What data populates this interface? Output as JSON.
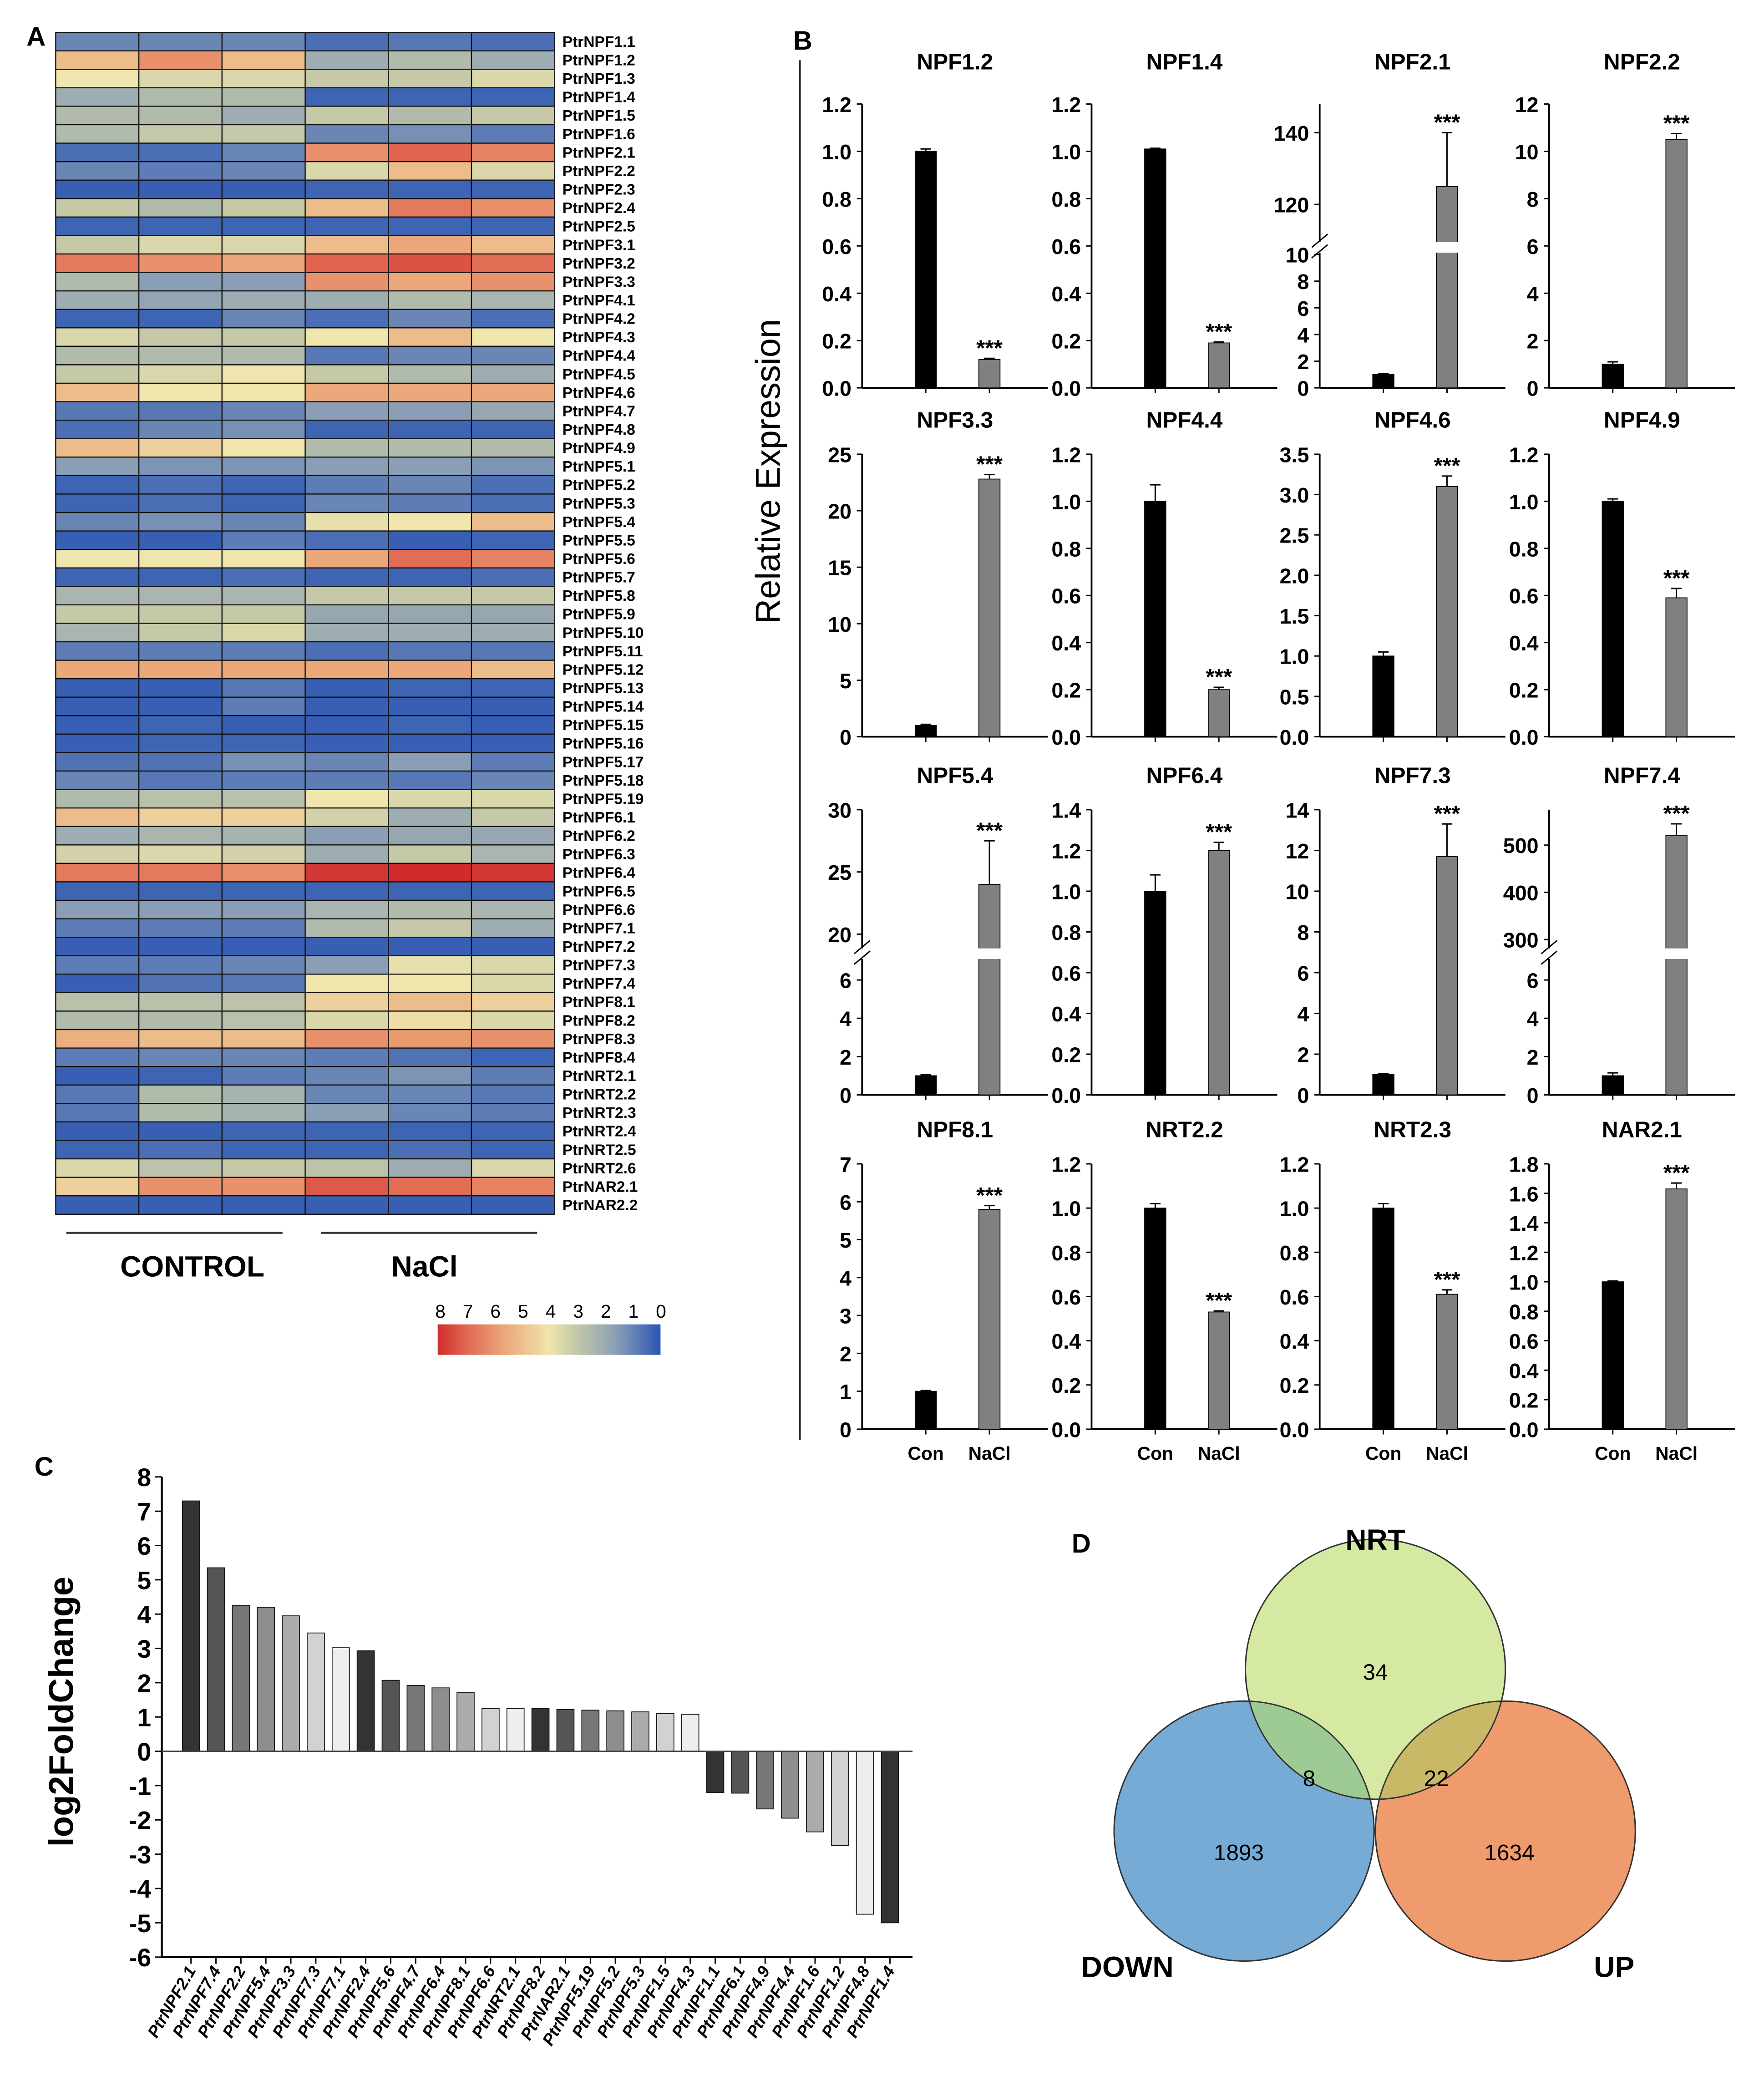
{
  "panel_labels": {
    "a": "A",
    "b": "B",
    "c": "C",
    "d": "D"
  },
  "chart_data": [
    {
      "type": "heatmap",
      "panel": "A",
      "columns_groups": [
        "CONTROL",
        "NaCl"
      ],
      "color_scale": {
        "min": 0,
        "max": 8,
        "tick_labels": [
          "8",
          "7",
          "6",
          "5",
          "4",
          "3",
          "2",
          "1",
          "0"
        ],
        "low_color": "#2b55b4",
        "high_color": "#d02c2c"
      },
      "rows": [
        "PtrNPF1.1",
        "PtrNPF1.2",
        "PtrNPF1.3",
        "PtrNPF1.4",
        "PtrNPF1.5",
        "PtrNPF1.6",
        "PtrNPF2.1",
        "PtrNPF2.2",
        "PtrNPF2.3",
        "PtrNPF2.4",
        "PtrNPF2.5",
        "PtrNPF3.1",
        "PtrNPF3.2",
        "PtrNPF3.3",
        "PtrNPF4.1",
        "PtrNPF4.2",
        "PtrNPF4.3",
        "PtrNPF4.4",
        "PtrNPF4.5",
        "PtrNPF4.6",
        "PtrNPF4.7",
        "PtrNPF4.8",
        "PtrNPF4.9",
        "PtrNPF5.1",
        "PtrNPF5.2",
        "PtrNPF5.3",
        "PtrNPF5.4",
        "PtrNPF5.5",
        "PtrNPF5.6",
        "PtrNPF5.7",
        "PtrNPF5.8",
        "PtrNPF5.9",
        "PtrNPF5.10",
        "PtrNPF5.11",
        "PtrNPF5.12",
        "PtrNPF5.13",
        "PtrNPF5.14",
        "PtrNPF5.15",
        "PtrNPF5.16",
        "PtrNPF5.17",
        "PtrNPF5.18",
        "PtrNPF5.19",
        "PtrNPF6.1",
        "PtrNPF6.2",
        "PtrNPF6.3",
        "PtrNPF6.4",
        "PtrNPF6.5",
        "PtrNPF6.6",
        "PtrNPF7.1",
        "PtrNPF7.2",
        "PtrNPF7.3",
        "PtrNPF7.4",
        "PtrNPF8.1",
        "PtrNPF8.2",
        "PtrNPF8.3",
        "PtrNPF8.4",
        "PtrNRT2.1",
        "PtrNRT2.2",
        "PtrNRT2.3",
        "PtrNRT2.4",
        "PtrNRT2.5",
        "PtrNRT2.6",
        "PtrNAR2.1",
        "PtrNAR2.2"
      ],
      "values": [
        [
          1,
          1,
          1,
          0.5,
          0.7,
          0.5
        ],
        [
          5,
          6,
          5,
          2,
          2.5,
          2
        ],
        [
          4,
          3.5,
          3.5,
          3,
          3,
          3.5
        ],
        [
          2,
          2.5,
          2.5,
          0.3,
          0.3,
          0.3
        ],
        [
          2.5,
          2.5,
          2,
          3,
          2.5,
          3
        ],
        [
          2.5,
          3,
          3,
          1,
          1.2,
          0.8
        ],
        [
          0.5,
          0.5,
          1,
          6,
          7,
          6.3
        ],
        [
          1,
          0.8,
          1,
          3.5,
          5,
          3.5
        ],
        [
          0.2,
          0.2,
          0.2,
          0.3,
          0.3,
          0.3
        ],
        [
          3,
          2.5,
          3,
          5,
          6.5,
          6
        ],
        [
          0.3,
          0.3,
          0.3,
          0.3,
          0.3,
          0.3
        ],
        [
          3,
          3.5,
          3.5,
          5,
          5.5,
          5
        ],
        [
          6.5,
          6,
          5.5,
          7,
          7.3,
          6.8
        ],
        [
          2.5,
          1.5,
          1.5,
          6,
          5.5,
          6
        ],
        [
          2,
          1.7,
          2,
          2,
          2.5,
          2.3
        ],
        [
          0.3,
          0.3,
          1,
          0.5,
          1,
          0.5
        ],
        [
          3.5,
          3,
          3,
          4,
          5,
          4
        ],
        [
          2.5,
          2.5,
          2.5,
          0.7,
          1,
          1
        ],
        [
          3,
          3.5,
          4,
          3,
          2.5,
          2
        ],
        [
          5,
          4,
          4,
          5.5,
          5.5,
          5.5
        ],
        [
          0.7,
          0.7,
          1,
          1.5,
          1.5,
          1.8
        ],
        [
          0.5,
          1,
          1.2,
          0.3,
          0.3,
          0.3
        ],
        [
          5,
          4.5,
          4,
          2.5,
          2.5,
          2.5
        ],
        [
          1.5,
          1.3,
          1.3,
          1.5,
          1.5,
          1.3
        ],
        [
          0.3,
          0.5,
          0.3,
          0.8,
          1,
          0.5
        ],
        [
          0.3,
          0.5,
          0.3,
          1,
          0.8,
          0.5
        ],
        [
          1,
          1.2,
          1,
          3.8,
          4,
          5
        ],
        [
          0.2,
          0.2,
          0.8,
          0.5,
          0.2,
          0.3
        ],
        [
          4,
          4,
          4,
          5.5,
          6.8,
          6.3
        ],
        [
          0.3,
          0.3,
          0.5,
          0.3,
          0.3,
          0.5
        ],
        [
          2.3,
          2.3,
          2.3,
          3,
          3,
          3
        ],
        [
          3,
          3,
          3,
          1.8,
          1.8,
          1.8
        ],
        [
          2.3,
          3,
          3.5,
          2,
          2,
          2
        ],
        [
          0.8,
          0.8,
          0.8,
          0.5,
          0.7,
          0.7
        ],
        [
          5.5,
          5.5,
          5.5,
          5.5,
          5.5,
          5
        ],
        [
          0.2,
          0.2,
          0.7,
          0.2,
          0.3,
          0.3
        ],
        [
          0.2,
          0.2,
          0.8,
          0.2,
          0.2,
          0.2
        ],
        [
          0.2,
          0.3,
          0.2,
          0.2,
          0.3,
          0.2
        ],
        [
          0.2,
          0.3,
          0.3,
          0.2,
          0.2,
          0.2
        ],
        [
          0.6,
          0.6,
          1.2,
          1,
          1.5,
          0.8
        ],
        [
          1,
          0.7,
          0.8,
          0.8,
          0.7,
          1
        ],
        [
          2.5,
          2.7,
          2.7,
          4,
          3.5,
          3.5
        ],
        [
          5,
          4.5,
          4.5,
          3.3,
          2,
          3
        ],
        [
          2,
          2.3,
          2.2,
          1.5,
          1.8,
          1.8
        ],
        [
          3.3,
          3.5,
          3.3,
          2,
          3,
          2.3
        ],
        [
          6.5,
          6.5,
          6,
          7.8,
          8,
          7.8
        ],
        [
          0.3,
          0.3,
          0.3,
          0.3,
          0.3,
          0.3
        ],
        [
          1.5,
          1.5,
          1.5,
          2.3,
          2.5,
          2.3
        ],
        [
          0.8,
          0.8,
          0.8,
          2.5,
          3,
          2
        ],
        [
          0.2,
          0.2,
          0.2,
          0.2,
          0.2,
          0.2
        ],
        [
          0.8,
          0.8,
          1,
          1.5,
          3.8,
          3.5
        ],
        [
          0.2,
          0.6,
          0.7,
          4,
          4,
          3.5
        ],
        [
          2.7,
          2.7,
          2.8,
          4.5,
          5,
          4.5
        ],
        [
          2.5,
          2.5,
          2.7,
          3.5,
          4.2,
          3.5
        ],
        [
          5.3,
          5,
          5,
          6,
          5.8,
          6
        ],
        [
          0.8,
          1,
          1,
          0.8,
          0.6,
          0.3
        ],
        [
          0.2,
          0.3,
          0.8,
          1,
          1.3,
          0.8
        ],
        [
          0.7,
          2.5,
          2.2,
          1,
          1,
          0.7
        ],
        [
          0.7,
          2.5,
          2.2,
          1.5,
          1,
          0.8
        ],
        [
          0.2,
          0.2,
          0.3,
          0.3,
          0.3,
          0.3
        ],
        [
          0.3,
          0.5,
          0.3,
          0.3,
          0.5,
          0.3
        ],
        [
          3.5,
          2.8,
          3,
          2.8,
          2,
          3.5
        ],
        [
          4.5,
          6,
          6,
          7.2,
          6.8,
          6.3
        ],
        [
          0.2,
          0.2,
          0.2,
          0.2,
          0.2,
          0.2
        ]
      ]
    },
    {
      "type": "bar",
      "panel": "B",
      "ylabel": "Relative Expression",
      "categories": [
        "Con",
        "NaCl"
      ],
      "bar_colors": [
        "#000000",
        "#808080"
      ],
      "significance": "***",
      "subplots": [
        {
          "title": "NPF1.2",
          "values": [
            1.0,
            0.12
          ],
          "errors": [
            0.01,
            0.005
          ],
          "ylim": [
            0,
            1.2
          ],
          "yticks": [
            "0.0",
            "0.2",
            "0.4",
            "0.6",
            "0.8",
            "1.0",
            "1.2"
          ]
        },
        {
          "title": "NPF1.4",
          "values": [
            1.01,
            0.19
          ],
          "errors": [
            0.003,
            0.004
          ],
          "ylim": [
            0,
            1.2
          ],
          "yticks": [
            "0.0",
            "0.2",
            "0.4",
            "0.6",
            "0.8",
            "1.0",
            "1.2"
          ]
        },
        {
          "title": "NPF2.1",
          "values": [
            1.0,
            125
          ],
          "errors": [
            0.05,
            15
          ],
          "broken": {
            "lower": [
              0,
              10
            ],
            "upper": [
              110,
              148
            ],
            "lower_ticks": [
              "0",
              "2",
              "4",
              "6",
              "8",
              "10"
            ],
            "upper_ticks": [
              "120",
              "140"
            ]
          }
        },
        {
          "title": "NPF2.2",
          "values": [
            1.0,
            10.5
          ],
          "errors": [
            0.1,
            0.25
          ],
          "ylim": [
            0,
            12
          ],
          "yticks": [
            "0",
            "2",
            "4",
            "6",
            "8",
            "10",
            "12"
          ]
        },
        {
          "title": "NPF3.3",
          "values": [
            1.0,
            22.8
          ],
          "errors": [
            0.1,
            0.4
          ],
          "ylim": [
            0,
            25
          ],
          "yticks": [
            "0",
            "5",
            "10",
            "15",
            "20",
            "25"
          ]
        },
        {
          "title": "NPF4.4",
          "values": [
            1.0,
            0.2
          ],
          "errors": [
            0.07,
            0.01
          ],
          "ylim": [
            0,
            1.2
          ],
          "yticks": [
            "0.0",
            "0.2",
            "0.4",
            "0.6",
            "0.8",
            "1.0",
            "1.2"
          ]
        },
        {
          "title": "NPF4.6",
          "values": [
            1.0,
            3.1
          ],
          "errors": [
            0.05,
            0.13
          ],
          "ylim": [
            0,
            3.5
          ],
          "yticks": [
            "0.0",
            "0.5",
            "1.0",
            "1.5",
            "2.0",
            "2.5",
            "3.0",
            "3.5"
          ]
        },
        {
          "title": "NPF4.9",
          "values": [
            1.0,
            0.59
          ],
          "errors": [
            0.01,
            0.04
          ],
          "ylim": [
            0,
            1.2
          ],
          "yticks": [
            "0.0",
            "0.2",
            "0.4",
            "0.6",
            "0.8",
            "1.0",
            "1.2"
          ]
        },
        {
          "title": "NPF5.4",
          "values": [
            1.0,
            24
          ],
          "errors": [
            0.05,
            3.5
          ],
          "broken": {
            "lower": [
              0,
              7
            ],
            "upper": [
              19,
              30
            ],
            "lower_ticks": [
              "0",
              "2",
              "4",
              "6"
            ],
            "upper_ticks": [
              "20",
              "25",
              "30"
            ]
          }
        },
        {
          "title": "NPF6.4",
          "values": [
            1.0,
            1.2
          ],
          "errors": [
            0.08,
            0.04
          ],
          "ylim": [
            0,
            1.4
          ],
          "yticks": [
            "0.0",
            "0.2",
            "0.4",
            "0.6",
            "0.8",
            "1.0",
            "1.2",
            "1.4"
          ]
        },
        {
          "title": "NPF7.3",
          "values": [
            1.0,
            11.7
          ],
          "errors": [
            0.05,
            1.6
          ],
          "ylim": [
            0,
            14
          ],
          "yticks": [
            "0",
            "2",
            "4",
            "6",
            "8",
            "10",
            "12",
            "14"
          ]
        },
        {
          "title": "NPF7.4",
          "values": [
            1.0,
            520
          ],
          "errors": [
            0.15,
            25
          ],
          "broken": {
            "lower": [
              0,
              7
            ],
            "upper": [
              285,
              575
            ],
            "lower_ticks": [
              "0",
              "2",
              "4",
              "6"
            ],
            "upper_ticks": [
              "300",
              "400",
              "500"
            ]
          }
        },
        {
          "title": "NPF8.1",
          "values": [
            1.0,
            5.8
          ],
          "errors": [
            0.02,
            0.1
          ],
          "ylim": [
            0,
            7
          ],
          "yticks": [
            "0",
            "1",
            "2",
            "3",
            "4",
            "5",
            "6",
            "7"
          ]
        },
        {
          "title": "NRT2.2",
          "values": [
            1.0,
            0.53
          ],
          "errors": [
            0.02,
            0.005
          ],
          "ylim": [
            0,
            1.2
          ],
          "yticks": [
            "0.0",
            "0.2",
            "0.4",
            "0.6",
            "0.8",
            "1.0",
            "1.2"
          ]
        },
        {
          "title": "NRT2.3",
          "values": [
            1.0,
            0.61
          ],
          "errors": [
            0.02,
            0.02
          ],
          "ylim": [
            0,
            1.2
          ],
          "yticks": [
            "0.0",
            "0.2",
            "0.4",
            "0.6",
            "0.8",
            "1.0",
            "1.2"
          ]
        },
        {
          "title": "NAR2.1",
          "values": [
            1.0,
            1.63
          ],
          "errors": [
            0.005,
            0.04
          ],
          "ylim": [
            0,
            1.8
          ],
          "yticks": [
            "0.0",
            "0.2",
            "0.4",
            "0.6",
            "0.8",
            "1.0",
            "1.2",
            "1.4",
            "1.6",
            "1.8"
          ]
        }
      ]
    },
    {
      "type": "bar",
      "panel": "C",
      "ylabel": "log2FoldChange",
      "ylim": [
        -6,
        8
      ],
      "yticks": [
        "8",
        "7",
        "6",
        "5",
        "4",
        "3",
        "2",
        "1",
        "0",
        "-1",
        "-2",
        "-3",
        "-4",
        "-5",
        "-6"
      ],
      "categories": [
        "PtrNPF2.1",
        "PtrNPF7.4",
        "PtrNPF2.2",
        "PtrNPF5.4",
        "PtrNPF3.3",
        "PtrNPF7.3",
        "PtrNPF7.1",
        "PtrNPF2.4",
        "PtrNPF5.6",
        "PtrNPF4.7",
        "PtrNPF6.4",
        "PtrNPF8.1",
        "PtrNPF6.6",
        "PtrNRT2.1",
        "PtrNPF8.2",
        "PtrNAR2.1",
        "PtrNPF5.19",
        "PtrNPF5.2",
        "PtrNPF5.3",
        "PtrNPF1.5",
        "PtrNPF4.3",
        "PtrNPF1.1",
        "PtrNPF6.1",
        "PtrNPF4.9",
        "PtrNPF4.4",
        "PtrNPF1.6",
        "PtrNPF1.2",
        "PtrNPF4.8",
        "PtrNPF1.4"
      ],
      "values": [
        7.3,
        5.35,
        4.25,
        4.2,
        3.95,
        3.45,
        3.02,
        2.93,
        2.07,
        1.92,
        1.85,
        1.72,
        1.25,
        1.25,
        1.25,
        1.22,
        1.2,
        1.18,
        1.15,
        1.1,
        1.08,
        -1.2,
        -1.22,
        -1.68,
        -1.95,
        -2.35,
        -2.75,
        -4.75,
        -5.0
      ],
      "bar_colors": [
        "#333333",
        "#555555",
        "#777777",
        "#8e8e8e",
        "#ababab",
        "#d2d2d2",
        "#eeeeee"
      ]
    },
    {
      "type": "venn",
      "panel": "D",
      "sets": [
        {
          "name": "NRT",
          "only": "34",
          "color": "#d6e9a2"
        },
        {
          "name": "DOWN",
          "only": "1893",
          "color": "#76abd5"
        },
        {
          "name": "UP",
          "only": "1634",
          "color": "#ef9b6e"
        }
      ],
      "intersections": [
        {
          "sets": [
            "NRT",
            "DOWN"
          ],
          "value": "8",
          "color": "#9ecb93"
        },
        {
          "sets": [
            "NRT",
            "UP"
          ],
          "value": "22",
          "color": "#c9b866"
        }
      ]
    }
  ]
}
